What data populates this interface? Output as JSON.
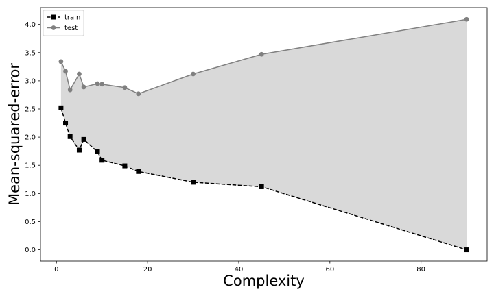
{
  "chart_data": {
    "type": "line",
    "xlabel": "Complexity",
    "ylabel": "Mean-squared-error",
    "xlim": [
      -3.5,
      94.5
    ],
    "ylim": [
      -0.2,
      4.3
    ],
    "x_ticks": [
      0,
      20,
      40,
      60,
      80
    ],
    "y_ticks": [
      0.0,
      0.5,
      1.0,
      1.5,
      2.0,
      2.5,
      3.0,
      3.5,
      4.0
    ],
    "x_tick_labels": [
      "0",
      "20",
      "40",
      "60",
      "80"
    ],
    "y_tick_labels": [
      "0.0",
      "0.5",
      "1.0",
      "1.5",
      "2.0",
      "2.5",
      "3.0",
      "3.5",
      "4.0"
    ],
    "grid": false,
    "legend_position": "top-left",
    "fill_between": {
      "from": "train",
      "to": "test",
      "color": "#d9d9d9"
    },
    "series": [
      {
        "name": "train",
        "color": "#000000",
        "linestyle": "dashed",
        "marker": "square",
        "points": [
          [
            1,
            2.52
          ],
          [
            2,
            2.25
          ],
          [
            3,
            2.01
          ],
          [
            5,
            1.77
          ],
          [
            6,
            1.96
          ],
          [
            9,
            1.74
          ],
          [
            10,
            1.59
          ],
          [
            15,
            1.49
          ],
          [
            18,
            1.39
          ],
          [
            30,
            1.2
          ],
          [
            45,
            1.12
          ],
          [
            90,
            0.0
          ]
        ]
      },
      {
        "name": "test",
        "color": "#808080",
        "linestyle": "solid",
        "marker": "circle",
        "points": [
          [
            1,
            3.34
          ],
          [
            2,
            3.17
          ],
          [
            3,
            2.84
          ],
          [
            5,
            3.12
          ],
          [
            6,
            2.89
          ],
          [
            9,
            2.95
          ],
          [
            10,
            2.94
          ],
          [
            15,
            2.88
          ],
          [
            18,
            2.77
          ],
          [
            30,
            3.12
          ],
          [
            45,
            3.47
          ],
          [
            90,
            4.09
          ]
        ]
      }
    ]
  }
}
